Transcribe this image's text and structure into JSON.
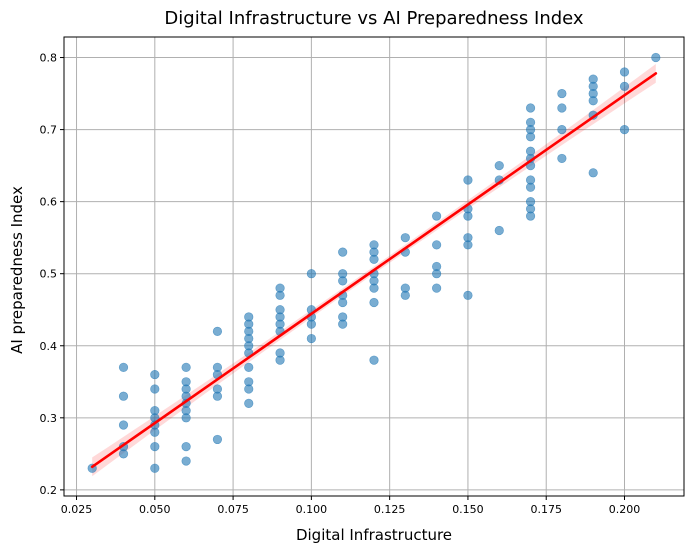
{
  "chart_data": {
    "type": "scatter",
    "title": "Digital Infrastructure vs AI Preparedness Index",
    "xlabel": "Digital Infrastructure",
    "ylabel": "AI preparedness Index",
    "xlim": [
      0.021,
      0.219
    ],
    "ylim": [
      0.1915,
      0.8285
    ],
    "xticks": [
      "0.025",
      "0.050",
      "0.075",
      "0.100",
      "0.125",
      "0.150",
      "0.175",
      "0.200"
    ],
    "yticks": [
      "0.2",
      "0.3",
      "0.4",
      "0.5",
      "0.6",
      "0.7",
      "0.8"
    ],
    "grid": true,
    "point_color": "#1f77b4",
    "point_alpha": 0.6,
    "line_color": "#ff0000",
    "band_color": "#ff0000",
    "points": [
      [
        0.03,
        0.23
      ],
      [
        0.04,
        0.37
      ],
      [
        0.04,
        0.33
      ],
      [
        0.04,
        0.29
      ],
      [
        0.04,
        0.26
      ],
      [
        0.04,
        0.25
      ],
      [
        0.05,
        0.36
      ],
      [
        0.05,
        0.34
      ],
      [
        0.05,
        0.31
      ],
      [
        0.05,
        0.3
      ],
      [
        0.05,
        0.29
      ],
      [
        0.05,
        0.28
      ],
      [
        0.05,
        0.26
      ],
      [
        0.05,
        0.23
      ],
      [
        0.06,
        0.37
      ],
      [
        0.06,
        0.35
      ],
      [
        0.06,
        0.34
      ],
      [
        0.06,
        0.33
      ],
      [
        0.06,
        0.32
      ],
      [
        0.06,
        0.31
      ],
      [
        0.06,
        0.3
      ],
      [
        0.06,
        0.26
      ],
      [
        0.06,
        0.24
      ],
      [
        0.07,
        0.42
      ],
      [
        0.07,
        0.37
      ],
      [
        0.07,
        0.36
      ],
      [
        0.07,
        0.34
      ],
      [
        0.07,
        0.33
      ],
      [
        0.07,
        0.27
      ],
      [
        0.08,
        0.44
      ],
      [
        0.08,
        0.43
      ],
      [
        0.08,
        0.42
      ],
      [
        0.08,
        0.41
      ],
      [
        0.08,
        0.4
      ],
      [
        0.08,
        0.39
      ],
      [
        0.08,
        0.37
      ],
      [
        0.08,
        0.35
      ],
      [
        0.08,
        0.34
      ],
      [
        0.08,
        0.32
      ],
      [
        0.09,
        0.48
      ],
      [
        0.09,
        0.47
      ],
      [
        0.09,
        0.45
      ],
      [
        0.09,
        0.44
      ],
      [
        0.09,
        0.43
      ],
      [
        0.09,
        0.42
      ],
      [
        0.09,
        0.39
      ],
      [
        0.09,
        0.38
      ],
      [
        0.1,
        0.5
      ],
      [
        0.1,
        0.45
      ],
      [
        0.1,
        0.44
      ],
      [
        0.1,
        0.43
      ],
      [
        0.1,
        0.41
      ],
      [
        0.11,
        0.53
      ],
      [
        0.11,
        0.5
      ],
      [
        0.11,
        0.49
      ],
      [
        0.11,
        0.47
      ],
      [
        0.11,
        0.46
      ],
      [
        0.11,
        0.44
      ],
      [
        0.11,
        0.43
      ],
      [
        0.12,
        0.54
      ],
      [
        0.12,
        0.53
      ],
      [
        0.12,
        0.52
      ],
      [
        0.12,
        0.5
      ],
      [
        0.12,
        0.49
      ],
      [
        0.12,
        0.48
      ],
      [
        0.12,
        0.46
      ],
      [
        0.12,
        0.38
      ],
      [
        0.13,
        0.55
      ],
      [
        0.13,
        0.53
      ],
      [
        0.13,
        0.48
      ],
      [
        0.13,
        0.47
      ],
      [
        0.14,
        0.58
      ],
      [
        0.14,
        0.54
      ],
      [
        0.14,
        0.51
      ],
      [
        0.14,
        0.5
      ],
      [
        0.14,
        0.48
      ],
      [
        0.15,
        0.63
      ],
      [
        0.15,
        0.59
      ],
      [
        0.15,
        0.58
      ],
      [
        0.15,
        0.55
      ],
      [
        0.15,
        0.54
      ],
      [
        0.15,
        0.47
      ],
      [
        0.16,
        0.65
      ],
      [
        0.16,
        0.63
      ],
      [
        0.16,
        0.56
      ],
      [
        0.17,
        0.73
      ],
      [
        0.17,
        0.71
      ],
      [
        0.17,
        0.7
      ],
      [
        0.17,
        0.69
      ],
      [
        0.17,
        0.67
      ],
      [
        0.17,
        0.66
      ],
      [
        0.17,
        0.65
      ],
      [
        0.17,
        0.63
      ],
      [
        0.17,
        0.62
      ],
      [
        0.17,
        0.6
      ],
      [
        0.17,
        0.59
      ],
      [
        0.17,
        0.58
      ],
      [
        0.18,
        0.75
      ],
      [
        0.18,
        0.73
      ],
      [
        0.18,
        0.7
      ],
      [
        0.18,
        0.66
      ],
      [
        0.19,
        0.77
      ],
      [
        0.19,
        0.76
      ],
      [
        0.19,
        0.75
      ],
      [
        0.19,
        0.74
      ],
      [
        0.19,
        0.72
      ],
      [
        0.19,
        0.64
      ],
      [
        0.2,
        0.78
      ],
      [
        0.2,
        0.76
      ],
      [
        0.2,
        0.7
      ],
      [
        0.21,
        0.8
      ]
    ],
    "regression": {
      "x_start": 0.03,
      "x_end": 0.21,
      "y_start": 0.232,
      "y_end": 0.778
    }
  }
}
